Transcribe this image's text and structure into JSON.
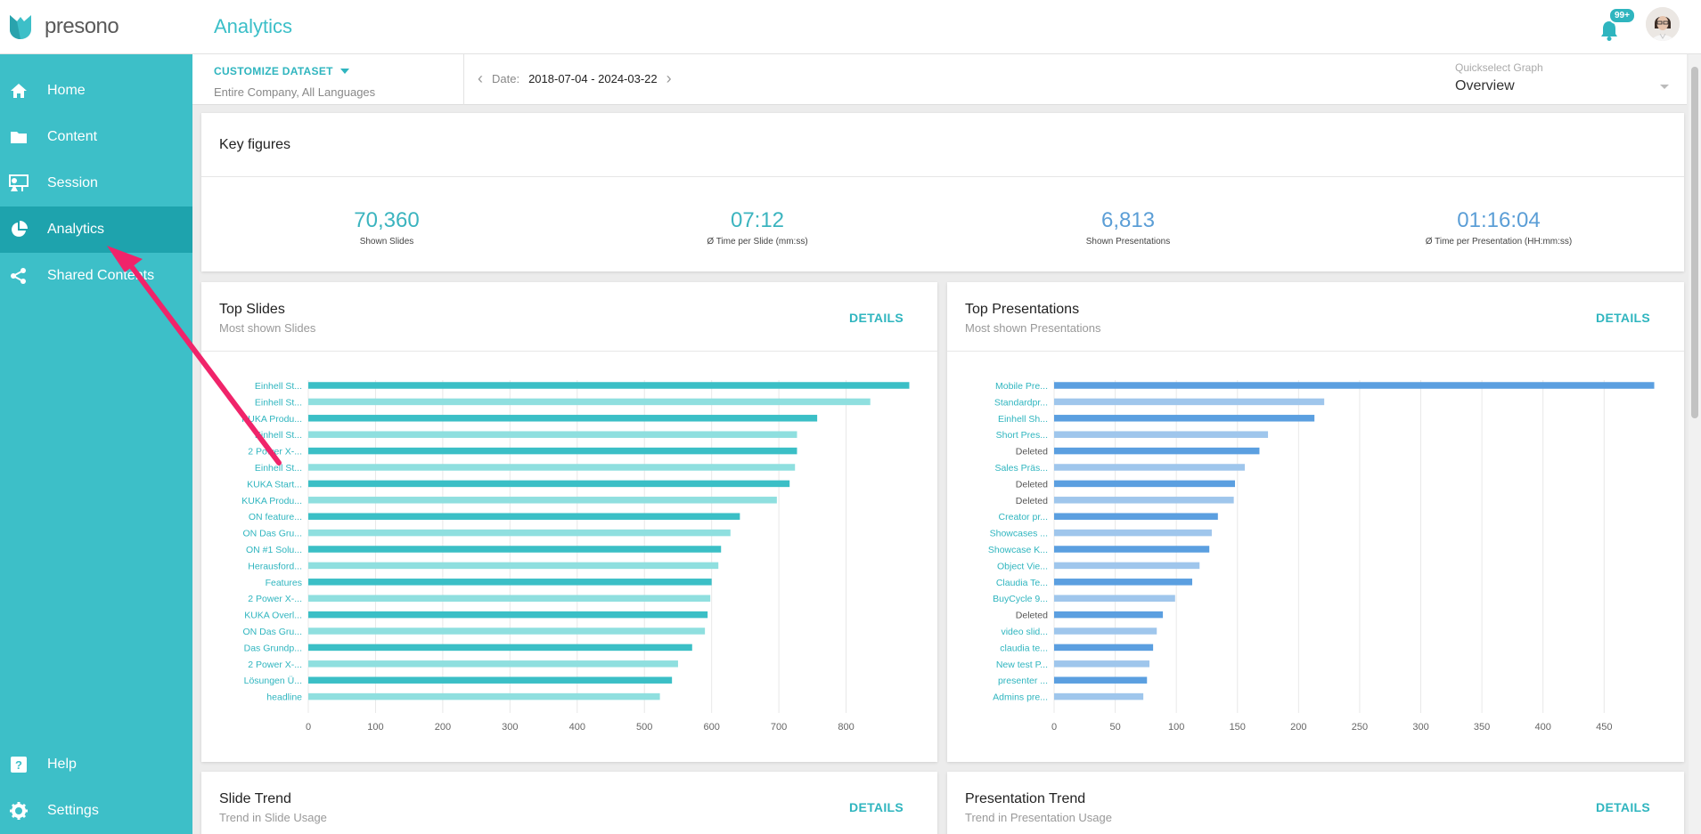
{
  "app": {
    "name": "presono",
    "page_title": "Analytics"
  },
  "header": {
    "notifications_badge": "99+"
  },
  "sidebar": {
    "items": [
      {
        "label": "Home",
        "icon": "home-icon"
      },
      {
        "label": "Content",
        "icon": "folder-icon"
      },
      {
        "label": "Session",
        "icon": "presentation-icon"
      },
      {
        "label": "Analytics",
        "icon": "pie-chart-icon"
      },
      {
        "label": "Shared Contents",
        "icon": "share-icon"
      }
    ],
    "bottom": [
      {
        "label": "Help",
        "icon": "help-icon"
      },
      {
        "label": "Settings",
        "icon": "gear-icon"
      }
    ]
  },
  "filters": {
    "dataset_label": "CUSTOMIZE DATASET",
    "dataset_value": "Entire Company, All Languages",
    "date_label": "Date:",
    "date_value": "2018-07-04 - 2024-03-22",
    "quickselect_label": "Quickselect Graph",
    "quickselect_value": "Overview"
  },
  "key_figures": {
    "title": "Key figures",
    "items": [
      {
        "value": "70,360",
        "label": "Shown Slides"
      },
      {
        "value": "07:12",
        "label": "Ø Time per Slide (mm:ss)"
      },
      {
        "value": "6,813",
        "label": "Shown Presentations"
      },
      {
        "value": "01:16:04",
        "label": "Ø Time per Presentation (HH:mm:ss)"
      }
    ]
  },
  "top_slides": {
    "title": "Top Slides",
    "subtitle": "Most shown Slides",
    "details_label": "DETAILS"
  },
  "top_presentations": {
    "title": "Top Presentations",
    "subtitle": "Most shown Presentations",
    "details_label": "DETAILS"
  },
  "slide_trend": {
    "title": "Slide Trend",
    "subtitle": "Trend in Slide Usage",
    "details_label": "DETAILS"
  },
  "presentation_trend": {
    "title": "Presentation Trend",
    "subtitle": "Trend in Presentation Usage",
    "details_label": "DETAILS"
  },
  "colors": {
    "accent": "#3dbfc8",
    "active_nav": "#1ea3ad",
    "slides_dark": "#3bbfc6",
    "slides_light": "#8fdfdf",
    "pres_dark": "#5b9fe0",
    "pres_light": "#9fc6ec"
  },
  "chart_data": [
    {
      "type": "bar",
      "orientation": "horizontal",
      "categories": [
        "Einhell St...",
        "Einhell St...",
        "KUKA Produ...",
        "Einhell St...",
        "2 Power X-...",
        "Einhell St...",
        "KUKA Start...",
        "KUKA Produ...",
        "ON feature...",
        "ON Das Gru...",
        "ON #1 Solu...",
        "Herausford...",
        "Features",
        "2 Power X-...",
        "KUKA Overl...",
        "ON Das Gru...",
        "Das Grundp...",
        "2 Power X-...",
        "Lösungen Ü...",
        "headline"
      ],
      "values": [
        894,
        836,
        757,
        727,
        727,
        724,
        716,
        697,
        642,
        628,
        614,
        610,
        600,
        598,
        594,
        590,
        571,
        550,
        541,
        523
      ],
      "xlim": [
        0,
        900
      ],
      "xticks": [
        0,
        100,
        200,
        300,
        400,
        500,
        600,
        700,
        800
      ],
      "grid": true
    },
    {
      "type": "bar",
      "orientation": "horizontal",
      "categories": [
        "Mobile Pre...",
        "Standardpr...",
        "Einhell Sh...",
        "Short Pres...",
        "Deleted",
        "Sales Präs...",
        "Deleted",
        "Deleted",
        "Creator pr...",
        "Showcases ...",
        "Showcase K...",
        "Object Vie...",
        "Claudia Te...",
        "BuyCycle 9...",
        "Deleted",
        "video slid...",
        "claudia te...",
        "New test P...",
        "presenter ...",
        "Admins pre..."
      ],
      "values": [
        491,
        221,
        213,
        175,
        168,
        156,
        148,
        147,
        134,
        129,
        127,
        119,
        113,
        99,
        89,
        84,
        81,
        78,
        76,
        73
      ],
      "xlim": [
        0,
        495
      ],
      "xticks": [
        0,
        50,
        100,
        150,
        200,
        250,
        300,
        350,
        400,
        450
      ],
      "grid": true
    }
  ]
}
